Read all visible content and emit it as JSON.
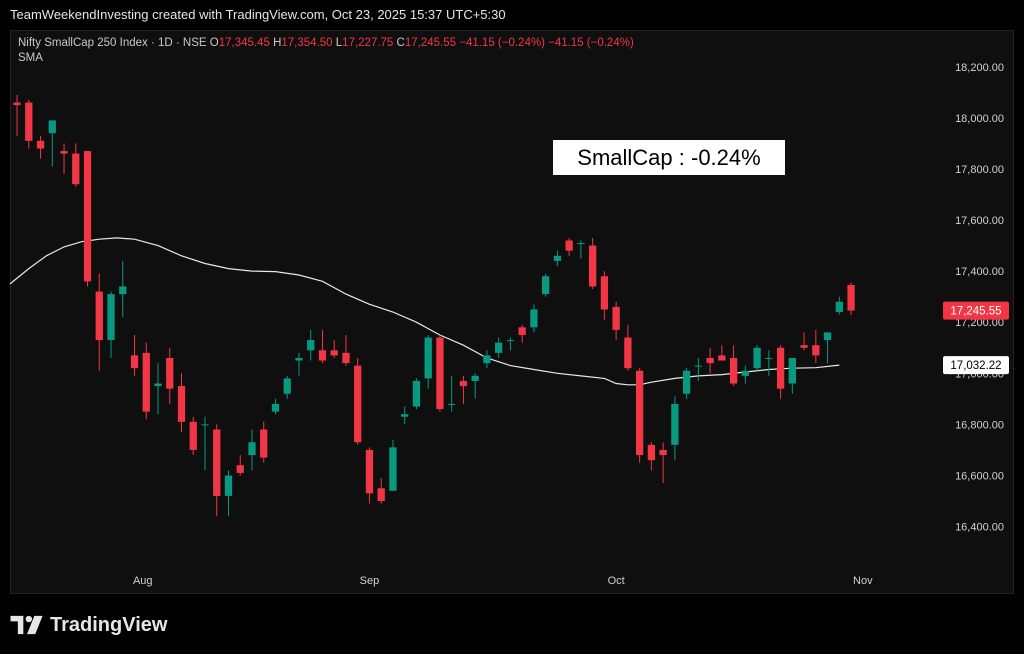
{
  "header": {
    "credit": "TeamWeekendInvesting created with TradingView.com, Oct 23, 2025 15:37 UTC+5:30"
  },
  "legend": {
    "symbol": "Nifty SmallCap 250 Index · 1D · NSE",
    "o_label": "O",
    "o_value": "17,345.45",
    "h_label": "H",
    "h_value": "17,354.50",
    "l_label": "L",
    "l_value": "17,227.75",
    "c_label": "C",
    "c_value": "17,245.55",
    "change": "−41.15 (−0.24%)",
    "change2": "−41.15 (−0.24%)",
    "indicator": "SMA"
  },
  "annotation": {
    "text": "SmallCap : -0.24%"
  },
  "price_tags": {
    "last": {
      "text": "17,245.55",
      "value": 17245.55,
      "color": "#f23645"
    },
    "sma": {
      "text": "17,032.22",
      "value": 17032.22,
      "color": "#ffffff"
    }
  },
  "brand": {
    "name": "TradingView"
  },
  "colors": {
    "up": "#089981",
    "down": "#f23645",
    "sma": "#e8e8e8",
    "background": "#0f0f0f"
  },
  "chart_data": {
    "type": "candlestick",
    "ylim": [
      16230,
      18340
    ],
    "y_ticks": [
      {
        "value": 16400,
        "label": "16,400.00"
      },
      {
        "value": 16600,
        "label": "16,600.00"
      },
      {
        "value": 16800,
        "label": "16,800.00"
      },
      {
        "value": 17000,
        "label": "17,000.00"
      },
      {
        "value": 17200,
        "label": "17,200.00"
      },
      {
        "value": 17400,
        "label": "17,400.00"
      },
      {
        "value": 17600,
        "label": "17,600.00"
      },
      {
        "value": 17800,
        "label": "17,800.00"
      },
      {
        "value": 18000,
        "label": "18,000.00"
      },
      {
        "value": 18200,
        "label": "18,200.00"
      }
    ],
    "x_ticks": [
      {
        "index": 10.7,
        "label": "Aug"
      },
      {
        "index": 30.0,
        "label": "Sep"
      },
      {
        "index": 51.0,
        "label": "Oct"
      },
      {
        "index": 72.0,
        "label": "Nov"
      }
    ],
    "index_range": [
      -0.6,
      78.4
    ],
    "candles": [
      {
        "o": 18060,
        "h": 18090,
        "l": 17930,
        "c": 18050
      },
      {
        "o": 18060,
        "h": 18070,
        "l": 17880,
        "c": 17910
      },
      {
        "o": 17910,
        "h": 17930,
        "l": 17840,
        "c": 17880
      },
      {
        "o": 17940,
        "h": 17990,
        "l": 17810,
        "c": 17990
      },
      {
        "o": 17870,
        "h": 17900,
        "l": 17780,
        "c": 17860
      },
      {
        "o": 17860,
        "h": 17900,
        "l": 17730,
        "c": 17740
      },
      {
        "o": 17870,
        "h": 17870,
        "l": 17340,
        "c": 17360
      },
      {
        "o": 17320,
        "h": 17390,
        "l": 17010,
        "c": 17130
      },
      {
        "o": 17130,
        "h": 17320,
        "l": 17060,
        "c": 17310
      },
      {
        "o": 17310,
        "h": 17440,
        "l": 17220,
        "c": 17340
      },
      {
        "o": 17070,
        "h": 17150,
        "l": 16990,
        "c": 17020
      },
      {
        "o": 17080,
        "h": 17120,
        "l": 16820,
        "c": 16850
      },
      {
        "o": 16950,
        "h": 17040,
        "l": 16840,
        "c": 16960
      },
      {
        "o": 17060,
        "h": 17100,
        "l": 16880,
        "c": 16940
      },
      {
        "o": 16950,
        "h": 17000,
        "l": 16770,
        "c": 16810
      },
      {
        "o": 16810,
        "h": 16830,
        "l": 16680,
        "c": 16700
      },
      {
        "o": 16800,
        "h": 16830,
        "l": 16620,
        "c": 16800
      },
      {
        "o": 16780,
        "h": 16800,
        "l": 16440,
        "c": 16520
      },
      {
        "o": 16520,
        "h": 16620,
        "l": 16440,
        "c": 16600
      },
      {
        "o": 16640,
        "h": 16680,
        "l": 16600,
        "c": 16610
      },
      {
        "o": 16680,
        "h": 16780,
        "l": 16620,
        "c": 16730
      },
      {
        "o": 16780,
        "h": 16810,
        "l": 16650,
        "c": 16670
      },
      {
        "o": 16850,
        "h": 16900,
        "l": 16840,
        "c": 16880
      },
      {
        "o": 16920,
        "h": 16990,
        "l": 16900,
        "c": 16980
      },
      {
        "o": 17050,
        "h": 17080,
        "l": 16990,
        "c": 17060
      },
      {
        "o": 17090,
        "h": 17170,
        "l": 17050,
        "c": 17130
      },
      {
        "o": 17090,
        "h": 17170,
        "l": 17040,
        "c": 17050
      },
      {
        "o": 17090,
        "h": 17130,
        "l": 17060,
        "c": 17070
      },
      {
        "o": 17080,
        "h": 17150,
        "l": 17030,
        "c": 17040
      },
      {
        "o": 17030,
        "h": 17060,
        "l": 16720,
        "c": 16730
      },
      {
        "o": 16700,
        "h": 16710,
        "l": 16490,
        "c": 16530
      },
      {
        "o": 16550,
        "h": 16590,
        "l": 16490,
        "c": 16500
      },
      {
        "o": 16540,
        "h": 16740,
        "l": 16540,
        "c": 16710
      },
      {
        "o": 16830,
        "h": 16870,
        "l": 16800,
        "c": 16840
      },
      {
        "o": 16870,
        "h": 16980,
        "l": 16860,
        "c": 16970
      },
      {
        "o": 16980,
        "h": 17150,
        "l": 16940,
        "c": 17140
      },
      {
        "o": 17140,
        "h": 17150,
        "l": 16850,
        "c": 16860
      },
      {
        "o": 16880,
        "h": 16990,
        "l": 16850,
        "c": 16880
      },
      {
        "o": 16970,
        "h": 16990,
        "l": 16880,
        "c": 16950
      },
      {
        "o": 16970,
        "h": 17000,
        "l": 16900,
        "c": 16990
      },
      {
        "o": 17040,
        "h": 17090,
        "l": 17020,
        "c": 17070
      },
      {
        "o": 17080,
        "h": 17140,
        "l": 17060,
        "c": 17120
      },
      {
        "o": 17130,
        "h": 17140,
        "l": 17090,
        "c": 17130
      },
      {
        "o": 17180,
        "h": 17190,
        "l": 17120,
        "c": 17150
      },
      {
        "o": 17180,
        "h": 17270,
        "l": 17160,
        "c": 17250
      },
      {
        "o": 17310,
        "h": 17390,
        "l": 17300,
        "c": 17380
      },
      {
        "o": 17440,
        "h": 17480,
        "l": 17420,
        "c": 17460
      },
      {
        "o": 17520,
        "h": 17530,
        "l": 17460,
        "c": 17480
      },
      {
        "o": 17510,
        "h": 17520,
        "l": 17450,
        "c": 17510
      },
      {
        "o": 17500,
        "h": 17530,
        "l": 17330,
        "c": 17340
      },
      {
        "o": 17380,
        "h": 17400,
        "l": 17210,
        "c": 17250
      },
      {
        "o": 17260,
        "h": 17280,
        "l": 17130,
        "c": 17170
      },
      {
        "o": 17140,
        "h": 17190,
        "l": 17010,
        "c": 17020
      },
      {
        "o": 17010,
        "h": 17020,
        "l": 16650,
        "c": 16680
      },
      {
        "o": 16720,
        "h": 16730,
        "l": 16620,
        "c": 16660
      },
      {
        "o": 16700,
        "h": 16730,
        "l": 16570,
        "c": 16680
      },
      {
        "o": 16720,
        "h": 16910,
        "l": 16660,
        "c": 16880
      },
      {
        "o": 16920,
        "h": 17020,
        "l": 16900,
        "c": 17010
      },
      {
        "o": 17030,
        "h": 17060,
        "l": 16970,
        "c": 17030
      },
      {
        "o": 17060,
        "h": 17100,
        "l": 17000,
        "c": 17040
      },
      {
        "o": 17070,
        "h": 17110,
        "l": 17050,
        "c": 17050
      },
      {
        "o": 17060,
        "h": 17110,
        "l": 16950,
        "c": 16960
      },
      {
        "o": 16990,
        "h": 17030,
        "l": 16960,
        "c": 17010
      },
      {
        "o": 17020,
        "h": 17110,
        "l": 17010,
        "c": 17100
      },
      {
        "o": 17060,
        "h": 17090,
        "l": 16990,
        "c": 17060
      },
      {
        "o": 17100,
        "h": 17110,
        "l": 16900,
        "c": 16940
      },
      {
        "o": 16960,
        "h": 17060,
        "l": 16920,
        "c": 17060
      },
      {
        "o": 17110,
        "h": 17160,
        "l": 17090,
        "c": 17100
      },
      {
        "o": 17110,
        "h": 17170,
        "l": 17040,
        "c": 17070
      },
      {
        "o": 17130,
        "h": 17160,
        "l": 17040,
        "c": 17160
      },
      {
        "o": 17240,
        "h": 17300,
        "l": 17230,
        "c": 17280
      },
      {
        "o": 17345.45,
        "h": 17354.5,
        "l": 17227.75,
        "c": 17245.55
      }
    ],
    "sma_points": [
      {
        "i": -0.6,
        "v": 17350
      },
      {
        "i": 1,
        "v": 17410
      },
      {
        "i": 2.5,
        "v": 17460
      },
      {
        "i": 4,
        "v": 17495
      },
      {
        "i": 5.5,
        "v": 17515
      },
      {
        "i": 7,
        "v": 17525
      },
      {
        "i": 8.5,
        "v": 17530
      },
      {
        "i": 10,
        "v": 17525
      },
      {
        "i": 12,
        "v": 17500
      },
      {
        "i": 14,
        "v": 17460
      },
      {
        "i": 16,
        "v": 17430
      },
      {
        "i": 18,
        "v": 17410
      },
      {
        "i": 20,
        "v": 17400
      },
      {
        "i": 22,
        "v": 17398
      },
      {
        "i": 24,
        "v": 17385
      },
      {
        "i": 26,
        "v": 17360
      },
      {
        "i": 28,
        "v": 17310
      },
      {
        "i": 30,
        "v": 17270
      },
      {
        "i": 32,
        "v": 17240
      },
      {
        "i": 34,
        "v": 17200
      },
      {
        "i": 36,
        "v": 17150
      },
      {
        "i": 38,
        "v": 17110
      },
      {
        "i": 40,
        "v": 17060
      },
      {
        "i": 42,
        "v": 17030
      },
      {
        "i": 44,
        "v": 17015
      },
      {
        "i": 46,
        "v": 17000
      },
      {
        "i": 48,
        "v": 16990
      },
      {
        "i": 50,
        "v": 16980
      },
      {
        "i": 51,
        "v": 16960
      },
      {
        "i": 52,
        "v": 16955
      },
      {
        "i": 53,
        "v": 16955
      },
      {
        "i": 54,
        "v": 16965
      },
      {
        "i": 56,
        "v": 16980
      },
      {
        "i": 58,
        "v": 16990
      },
      {
        "i": 60,
        "v": 16995
      },
      {
        "i": 62,
        "v": 17005
      },
      {
        "i": 64,
        "v": 17015
      },
      {
        "i": 66,
        "v": 17020
      },
      {
        "i": 68,
        "v": 17022
      },
      {
        "i": 70,
        "v": 17032
      }
    ]
  }
}
